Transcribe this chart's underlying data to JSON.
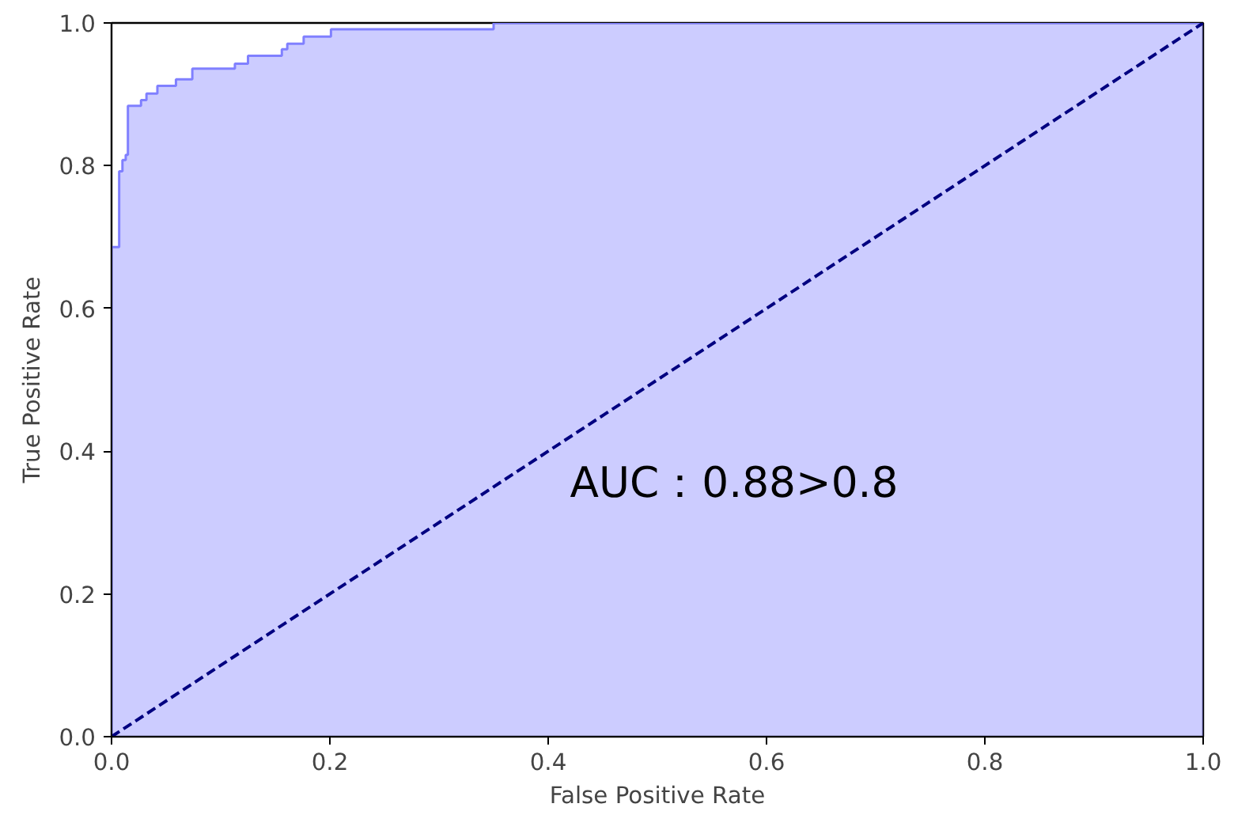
{
  "chart_data": {
    "type": "step",
    "xlabel": "False Positive Rate",
    "ylabel": "True Positive Rate",
    "xlim": [
      0,
      1
    ],
    "ylim": [
      0,
      1
    ],
    "xticks": [
      {
        "value": 0,
        "label": "0.0"
      },
      {
        "value": 0.2,
        "label": "0.2"
      },
      {
        "value": 0.4,
        "label": "0.4"
      },
      {
        "value": 0.6,
        "label": "0.6"
      },
      {
        "value": 0.8,
        "label": "0.8"
      },
      {
        "value": 1,
        "label": "1.0"
      }
    ],
    "yticks": [
      {
        "value": 0,
        "label": "0.0"
      },
      {
        "value": 0.2,
        "label": "0.2"
      },
      {
        "value": 0.4,
        "label": "0.4"
      },
      {
        "value": 0.6,
        "label": "0.6"
      },
      {
        "value": 0.8,
        "label": "0.8"
      },
      {
        "value": 1,
        "label": "1.0"
      }
    ],
    "grid": false,
    "series": [
      {
        "color": "#8080ff",
        "x": [
          0,
          0,
          0.007,
          0.01,
          0.013,
          0.015,
          0.027,
          0.032,
          0.042,
          0.059,
          0.074,
          0.113,
          0.125,
          0.156,
          0.161,
          0.176,
          0.201,
          0.35,
          1.0
        ],
        "values": [
          0,
          0.686,
          0.792,
          0.808,
          0.815,
          0.884,
          0.892,
          0.901,
          0.912,
          0.921,
          0.936,
          0.943,
          0.954,
          0.963,
          0.971,
          0.981,
          0.991,
          1.0,
          1.0
        ]
      },
      {
        "type": "line",
        "color": "#000080",
        "line_style": "dashed",
        "x": [
          0,
          1
        ],
        "values": [
          0,
          1
        ]
      }
    ],
    "annotations": [
      "AUC：0.88>0.8"
    ]
  }
}
